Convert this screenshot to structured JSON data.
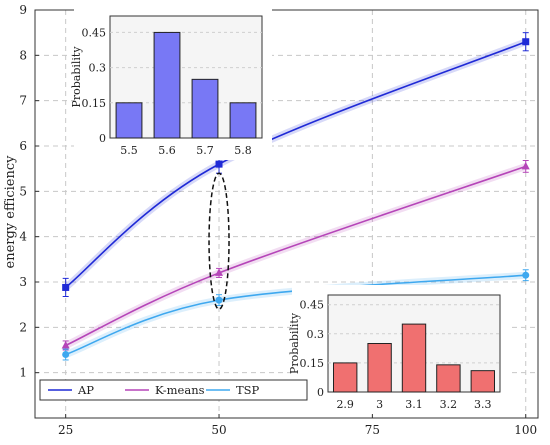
{
  "chart_data": [
    {
      "type": "line",
      "title": "",
      "xlabel": "",
      "ylabel": "energy efficiency",
      "x": [
        25,
        50,
        100
      ],
      "xticks": [
        25,
        50,
        75,
        100
      ],
      "yticks": [
        1,
        2,
        3,
        4,
        5,
        6,
        7,
        8,
        9
      ],
      "xlim": [
        20,
        102
      ],
      "ylim": [
        0,
        9
      ],
      "grid": true,
      "legend_position": "bottom-left",
      "series": [
        {
          "name": "AP",
          "color": "#1f2ad6",
          "marker": "square",
          "values": [
            2.88,
            5.6,
            8.3
          ],
          "error": [
            0.2,
            0.2,
            0.2
          ]
        },
        {
          "name": "K-means",
          "color": "#b545b8",
          "marker": "triangle",
          "values": [
            1.6,
            3.2,
            5.55
          ],
          "error": [
            0.1,
            0.1,
            0.13
          ]
        },
        {
          "name": "TSP",
          "color": "#3ea8ef",
          "marker": "circle",
          "values": [
            1.4,
            2.6,
            3.15
          ],
          "error": [
            0.12,
            0.12,
            0.12
          ]
        }
      ],
      "annotation": "dashed ellipse around x = 50 spanning the three series"
    },
    {
      "type": "bar",
      "title": "",
      "ylabel": "Probability",
      "position": "top-left inset",
      "categories": [
        "5.5",
        "5.6",
        "5.7",
        "5.8"
      ],
      "values": [
        0.15,
        0.45,
        0.25,
        0.15
      ],
      "yticks": [
        "0",
        "0.15",
        "0.3",
        "0.45"
      ],
      "ylim": [
        0,
        0.52
      ],
      "bar_color": "#7878f5"
    },
    {
      "type": "bar",
      "title": "",
      "ylabel": "Probability",
      "position": "bottom-right inset",
      "categories": [
        "2.9",
        "3",
        "3.1",
        "3.2",
        "3.3"
      ],
      "values": [
        0.15,
        0.25,
        0.35,
        0.14,
        0.11
      ],
      "yticks": [
        "0",
        "0.15",
        "0.3",
        "0.45"
      ],
      "ylim": [
        0,
        0.5
      ],
      "bar_color": "#f07070"
    }
  ]
}
